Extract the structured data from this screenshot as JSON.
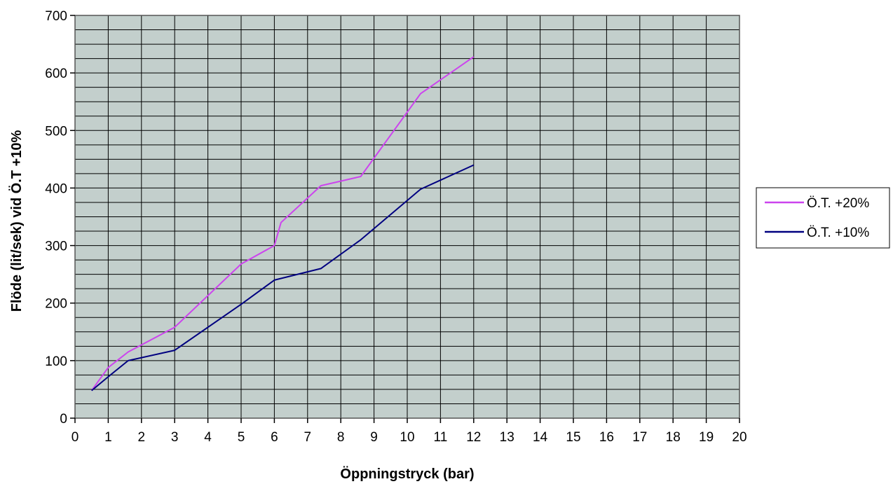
{
  "chart_data": {
    "type": "line",
    "title": "",
    "xlabel": "Öppningstryck (bar)",
    "ylabel": "Flöde (lit/sek) vid Ö.T +10%",
    "xlim": [
      0,
      20
    ],
    "ylim": [
      0,
      700
    ],
    "x_ticks": [
      0,
      1,
      2,
      3,
      4,
      5,
      6,
      7,
      8,
      9,
      10,
      11,
      12,
      13,
      14,
      15,
      16,
      17,
      18,
      19,
      20
    ],
    "y_ticks": [
      0,
      100,
      200,
      300,
      400,
      500,
      600,
      700
    ],
    "x_minor_step": 1,
    "y_minor_step": 25,
    "grid": true,
    "plot_background": "#c3cfcc",
    "legend_position": "right",
    "series": [
      {
        "name": "Ö.T. +20%",
        "color": "#cc44ee",
        "x": [
          0.5,
          1,
          1.6,
          3,
          5,
          6,
          6.2,
          7.4,
          8.6,
          10.4,
          12
        ],
        "y": [
          48,
          88,
          115,
          158,
          268,
          300,
          340,
          404,
          420,
          564,
          628
        ]
      },
      {
        "name": "Ö.T. +10%",
        "color": "#000080",
        "x": [
          0.5,
          1,
          1.6,
          3,
          5,
          6,
          7.4,
          8.6,
          10.4,
          12
        ],
        "y": [
          48,
          72,
          100,
          118,
          198,
          240,
          260,
          310,
          398,
          440
        ]
      }
    ]
  }
}
